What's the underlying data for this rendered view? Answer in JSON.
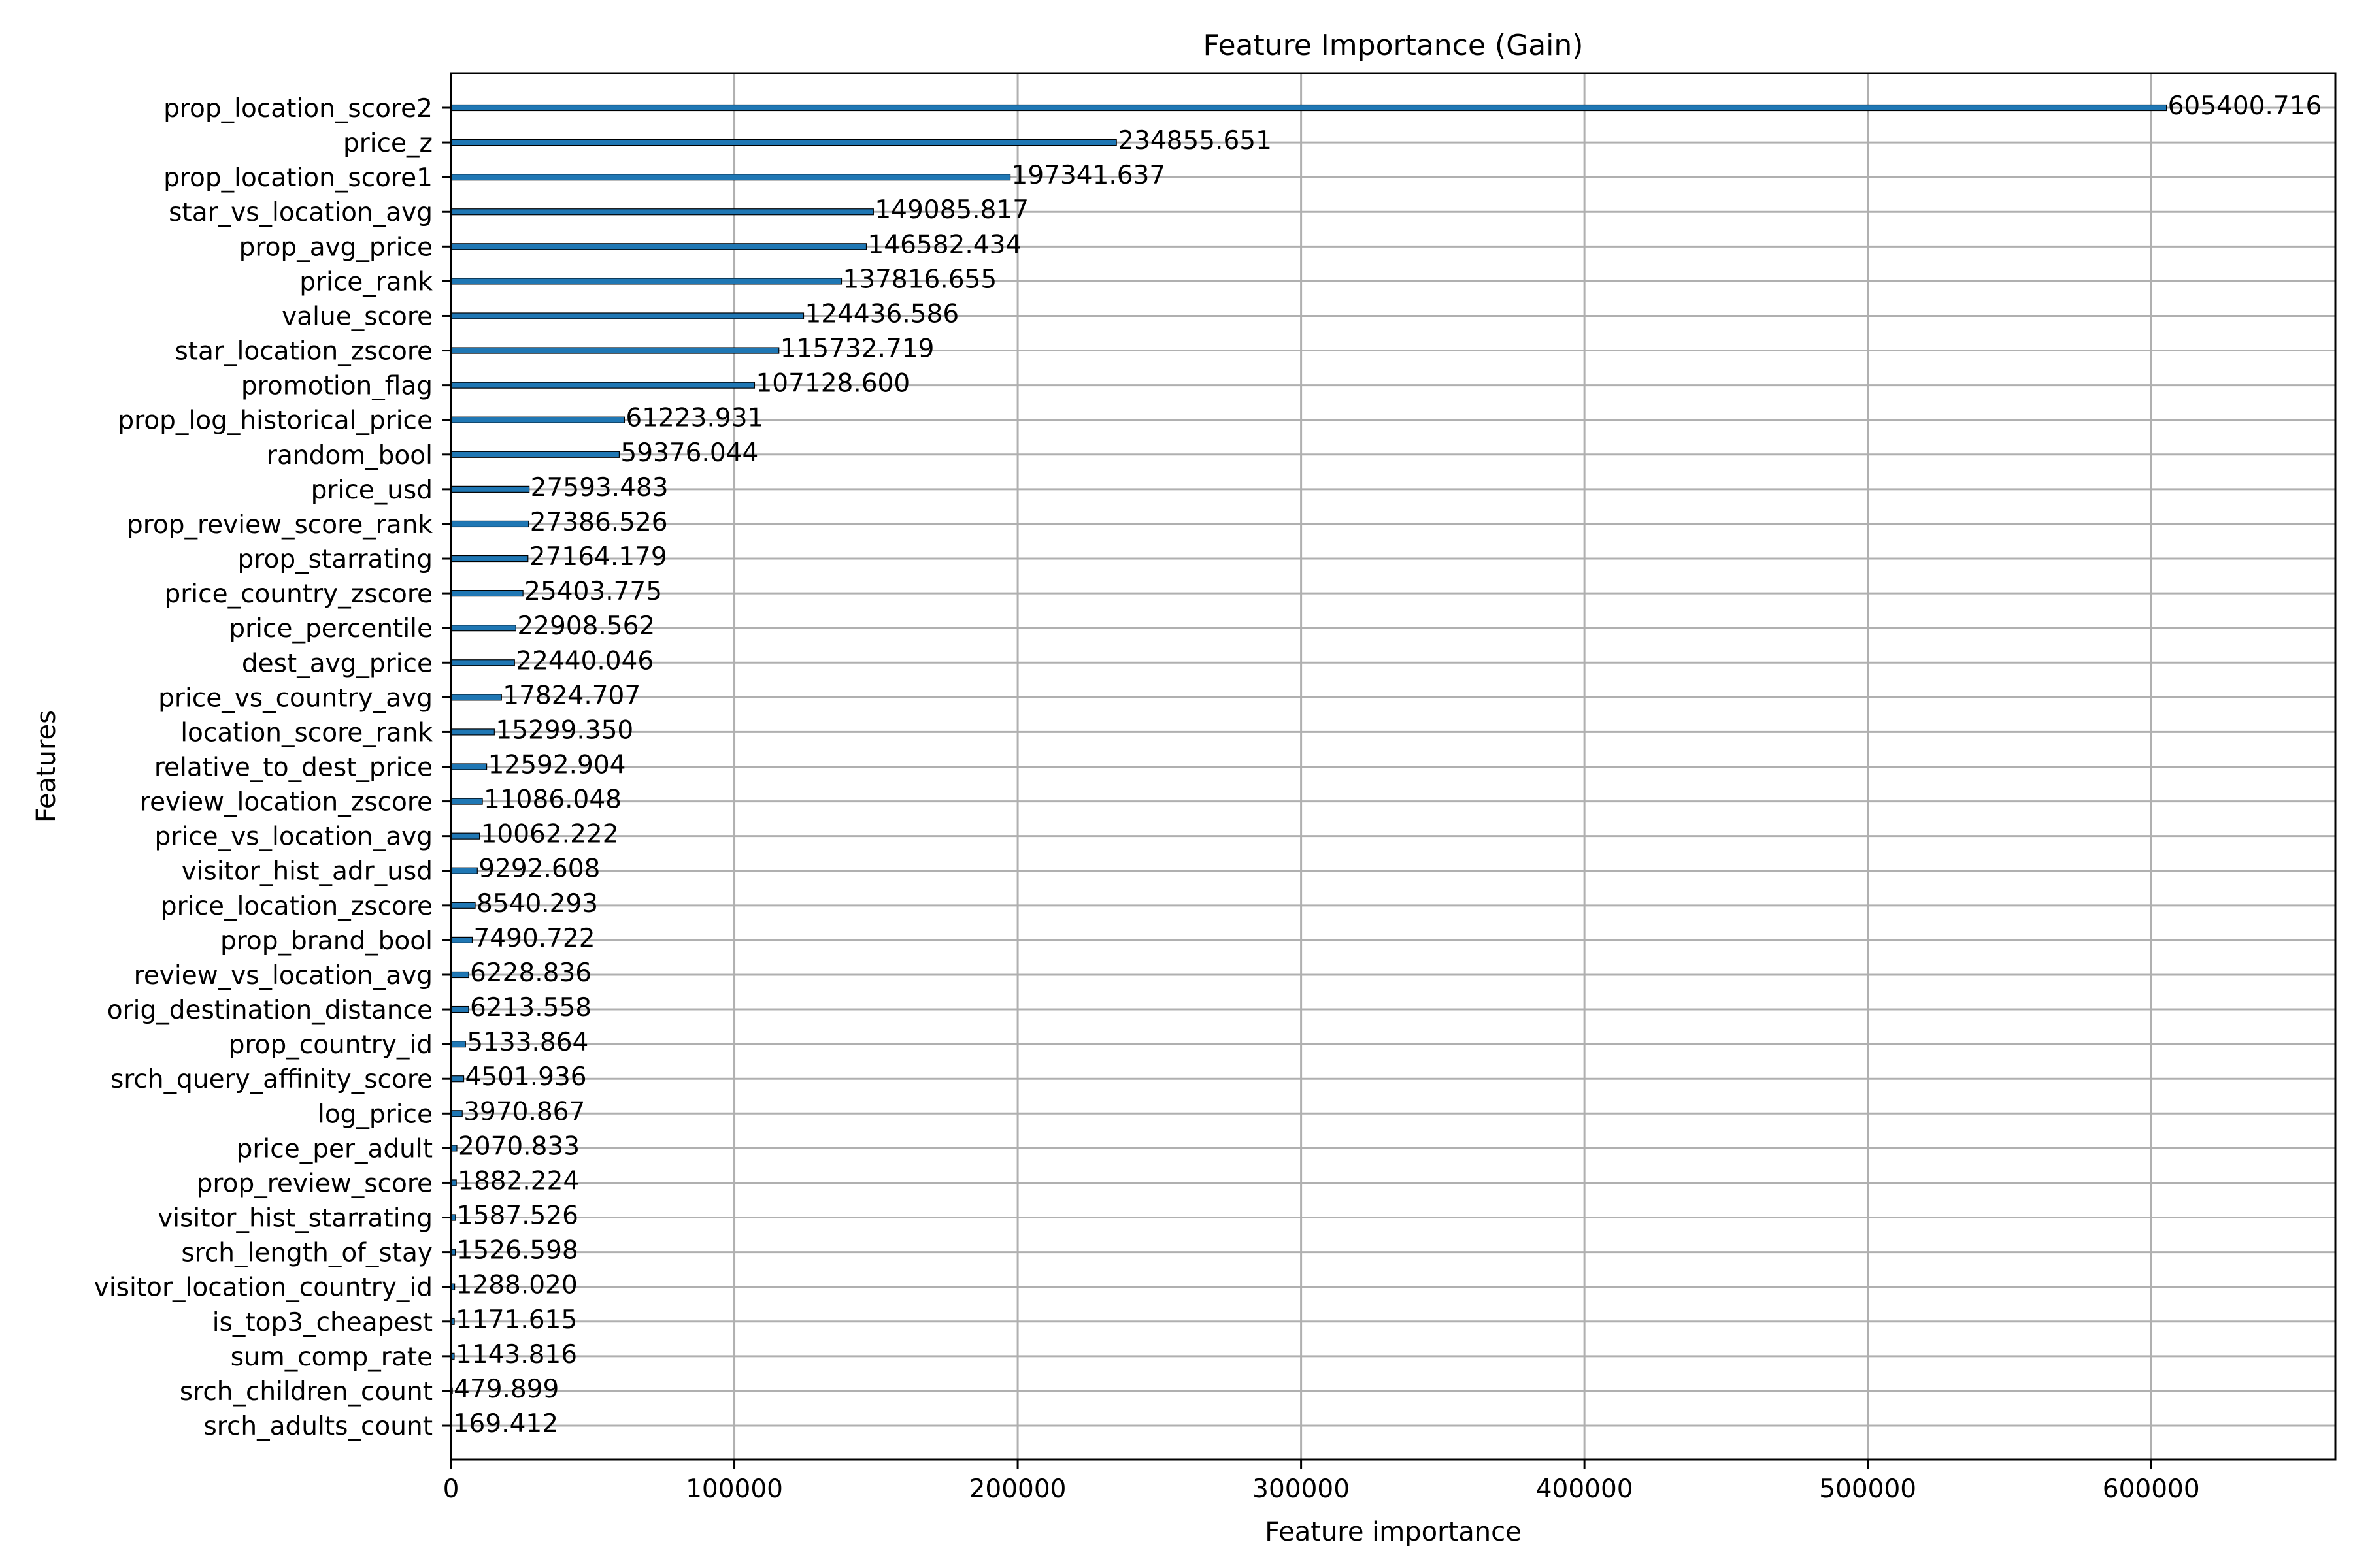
{
  "chart_data": {
    "type": "bar",
    "orientation": "horizontal",
    "title": "Feature Importance (Gain)",
    "xlabel": "Feature importance",
    "ylabel": "Features",
    "xlim": [
      0,
      665000
    ],
    "xticks": [
      0,
      100000,
      200000,
      300000,
      400000,
      500000,
      600000
    ],
    "xtick_labels": [
      "0",
      "100000",
      "200000",
      "300000",
      "400000",
      "500000",
      "600000"
    ],
    "grid": true,
    "bar_color": "#1f77b4",
    "categories": [
      "prop_location_score2",
      "price_z",
      "prop_location_score1",
      "star_vs_location_avg",
      "prop_avg_price",
      "price_rank",
      "value_score",
      "star_location_zscore",
      "promotion_flag",
      "prop_log_historical_price",
      "random_bool",
      "price_usd",
      "prop_review_score_rank",
      "prop_starrating",
      "price_country_zscore",
      "price_percentile",
      "dest_avg_price",
      "price_vs_country_avg",
      "location_score_rank",
      "relative_to_dest_price",
      "review_location_zscore",
      "price_vs_location_avg",
      "visitor_hist_adr_usd",
      "price_location_zscore",
      "prop_brand_bool",
      "review_vs_location_avg",
      "orig_destination_distance",
      "prop_country_id",
      "srch_query_affinity_score",
      "log_price",
      "price_per_adult",
      "prop_review_score",
      "visitor_hist_starrating",
      "srch_length_of_stay",
      "visitor_location_country_id",
      "is_top3_cheapest",
      "sum_comp_rate",
      "srch_children_count",
      "srch_adults_count"
    ],
    "values": [
      605400.716,
      234855.651,
      197341.637,
      149085.817,
      146582.434,
      137816.655,
      124436.586,
      115732.719,
      107128.6,
      61223.931,
      59376.044,
      27593.483,
      27386.526,
      27164.179,
      25403.775,
      22908.562,
      22440.046,
      17824.707,
      15299.35,
      12592.904,
      11086.048,
      10062.222,
      9292.608,
      8540.293,
      7490.722,
      6228.836,
      6213.558,
      5133.864,
      4501.936,
      3970.867,
      2070.833,
      1882.224,
      1587.526,
      1526.598,
      1288.02,
      1171.615,
      1143.816,
      479.899,
      169.412
    ],
    "value_labels": [
      "605400.716",
      "234855.651",
      "197341.637",
      "149085.817",
      "146582.434",
      "137816.655",
      "124436.586",
      "115732.719",
      "107128.600",
      "61223.931",
      "59376.044",
      "27593.483",
      "27386.526",
      "27164.179",
      "25403.775",
      "22908.562",
      "22440.046",
      "17824.707",
      "15299.350",
      "12592.904",
      "11086.048",
      "10062.222",
      "9292.608",
      "8540.293",
      "7490.722",
      "6228.836",
      "6213.558",
      "5133.864",
      "4501.936",
      "3970.867",
      "2070.833",
      "1882.224",
      "1587.526",
      "1526.598",
      "1288.020",
      "1171.615",
      "1143.816",
      "479.899",
      "169.412"
    ]
  }
}
